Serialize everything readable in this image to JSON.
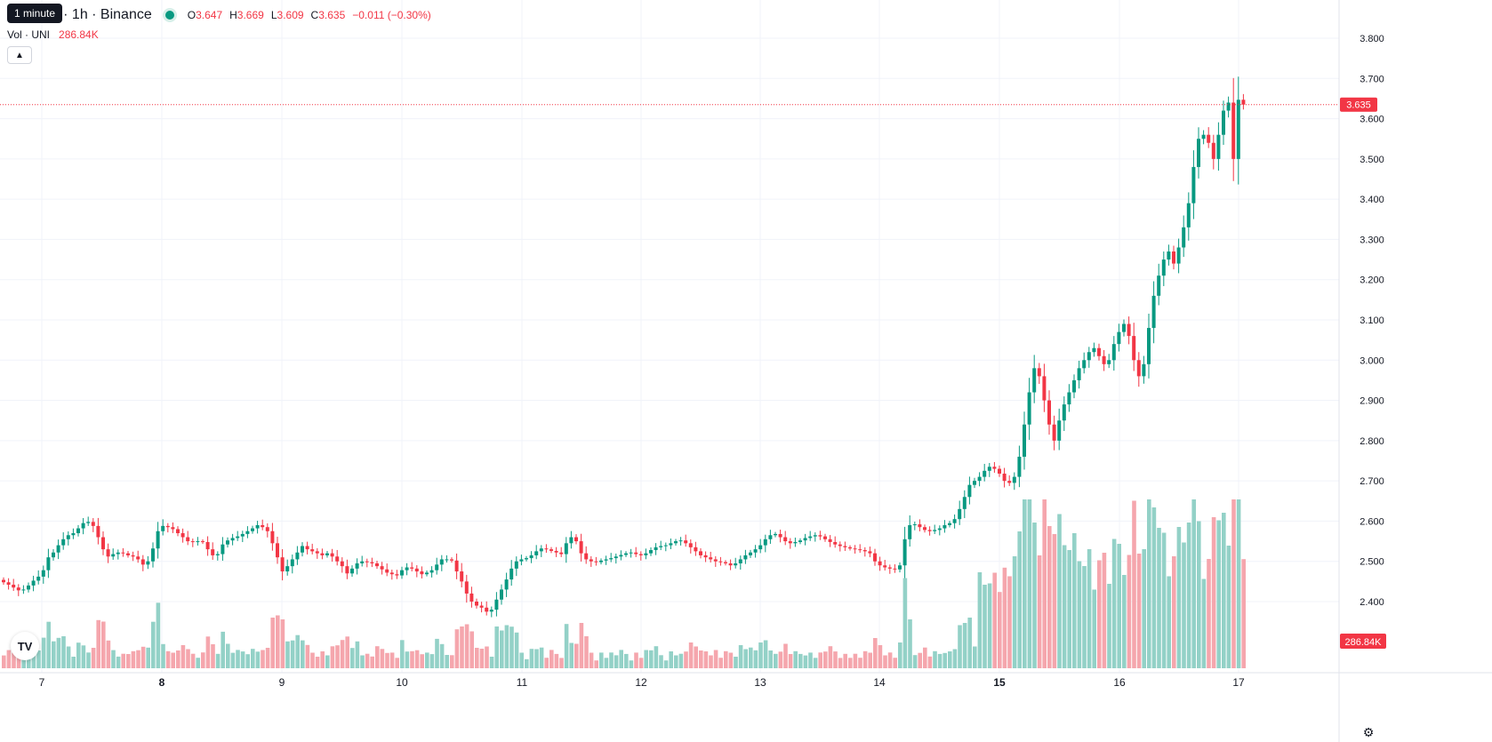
{
  "tooltip": "1 minute",
  "legend": {
    "symbol_title": "etherUS · 1h · Binance",
    "open_label": "O",
    "open": "3.647",
    "high_label": "H",
    "high": "3.669",
    "low_label": "L",
    "low": "3.609",
    "close_label": "C",
    "close": "3.635",
    "change": "−0.011 (−0.30%)"
  },
  "volume_legend": {
    "label": "Vol · UNI",
    "value": "286.84K"
  },
  "price_badge": "3.635",
  "volume_badge": "286.84K",
  "collapse_icon": "chevron-up-icon",
  "logo": "TV",
  "colors": {
    "up": "#089981",
    "down": "#f23645",
    "up_vol": "#93d1c7",
    "down_vol": "#f5a6ad"
  },
  "chart_data": {
    "type": "candlestick",
    "price_axis": {
      "range": [
        2.3,
        3.85
      ],
      "ticks": [
        "3.800",
        "3.700",
        "3.600",
        "3.500",
        "3.400",
        "3.300",
        "3.200",
        "3.100",
        "3.000",
        "2.900",
        "2.800",
        "2.700",
        "2.600",
        "2.500",
        "2.400"
      ]
    },
    "time_axis": {
      "labels": [
        "7",
        "8",
        "9",
        "10",
        "11",
        "12",
        "13",
        "14",
        "15",
        "16",
        "17"
      ],
      "bold_labels": [
        "8",
        "15"
      ]
    },
    "last_price": 3.635,
    "closes": [
      2.448,
      2.442,
      2.435,
      2.428,
      2.43,
      2.44,
      2.452,
      2.462,
      2.478,
      2.51,
      2.522,
      2.54,
      2.555,
      2.565,
      2.57,
      2.582,
      2.595,
      2.598,
      2.588,
      2.56,
      2.53,
      2.512,
      2.518,
      2.522,
      2.52,
      2.515,
      2.512,
      2.505,
      2.492,
      2.5,
      2.532,
      2.575,
      2.588,
      2.585,
      2.58,
      2.57,
      2.56,
      2.55,
      2.548,
      2.55,
      2.548,
      2.53,
      2.515,
      2.518,
      2.542,
      2.552,
      2.558,
      2.562,
      2.568,
      2.575,
      2.582,
      2.59,
      2.585,
      2.575,
      2.545,
      2.51,
      2.475,
      2.488,
      2.505,
      2.522,
      2.538,
      2.53,
      2.525,
      2.52,
      2.515,
      2.52,
      2.512,
      2.5,
      2.488,
      2.47,
      2.482,
      2.495,
      2.5,
      2.498,
      2.495,
      2.488,
      2.48,
      2.472,
      2.468,
      2.465,
      2.478,
      2.485,
      2.482,
      2.475,
      2.468,
      2.472,
      2.478,
      2.492,
      2.505,
      2.505,
      2.502,
      2.475,
      2.45,
      2.42,
      2.4,
      2.39,
      2.385,
      2.375,
      2.38,
      2.405,
      2.43,
      2.455,
      2.482,
      2.5,
      2.505,
      2.508,
      2.515,
      2.525,
      2.532,
      2.53,
      2.526,
      2.522,
      2.518,
      2.545,
      2.56,
      2.55,
      2.52,
      2.505,
      2.5,
      2.498,
      2.502,
      2.505,
      2.508,
      2.512,
      2.516,
      2.52,
      2.522,
      2.518,
      2.515,
      2.52,
      2.528,
      2.535,
      2.538,
      2.54,
      2.545,
      2.55,
      2.552,
      2.545,
      2.535,
      2.525,
      2.515,
      2.51,
      2.505,
      2.5,
      2.498,
      2.495,
      2.49,
      2.495,
      2.505,
      2.515,
      2.522,
      2.53,
      2.54,
      2.555,
      2.565,
      2.568,
      2.56,
      2.55,
      2.545,
      2.548,
      2.552,
      2.558,
      2.562,
      2.565,
      2.562,
      2.555,
      2.548,
      2.542,
      2.538,
      2.535,
      2.532,
      2.53,
      2.528,
      2.525,
      2.52,
      2.5,
      2.49,
      2.485,
      2.482,
      2.48,
      2.49,
      2.555,
      2.59,
      2.592,
      2.585,
      2.578,
      2.575,
      2.578,
      2.582,
      2.59,
      2.595,
      2.605,
      2.63,
      2.66,
      2.69,
      2.7,
      2.71,
      2.725,
      2.735,
      2.73,
      2.718,
      2.7,
      2.695,
      2.71,
      2.76,
      2.84,
      2.92,
      2.98,
      2.96,
      2.9,
      2.84,
      2.8,
      2.85,
      2.89,
      2.92,
      2.95,
      2.98,
      3.0,
      3.02,
      3.03,
      3.01,
      2.99,
      3.0,
      3.04,
      3.07,
      3.09,
      3.06,
      3.0,
      2.96,
      2.99,
      3.08,
      3.16,
      3.21,
      3.25,
      3.27,
      3.24,
      3.28,
      3.33,
      3.39,
      3.48,
      3.55,
      3.56,
      3.54,
      3.5,
      3.56,
      3.62,
      3.64,
      3.5,
      3.647,
      3.635
    ]
  }
}
